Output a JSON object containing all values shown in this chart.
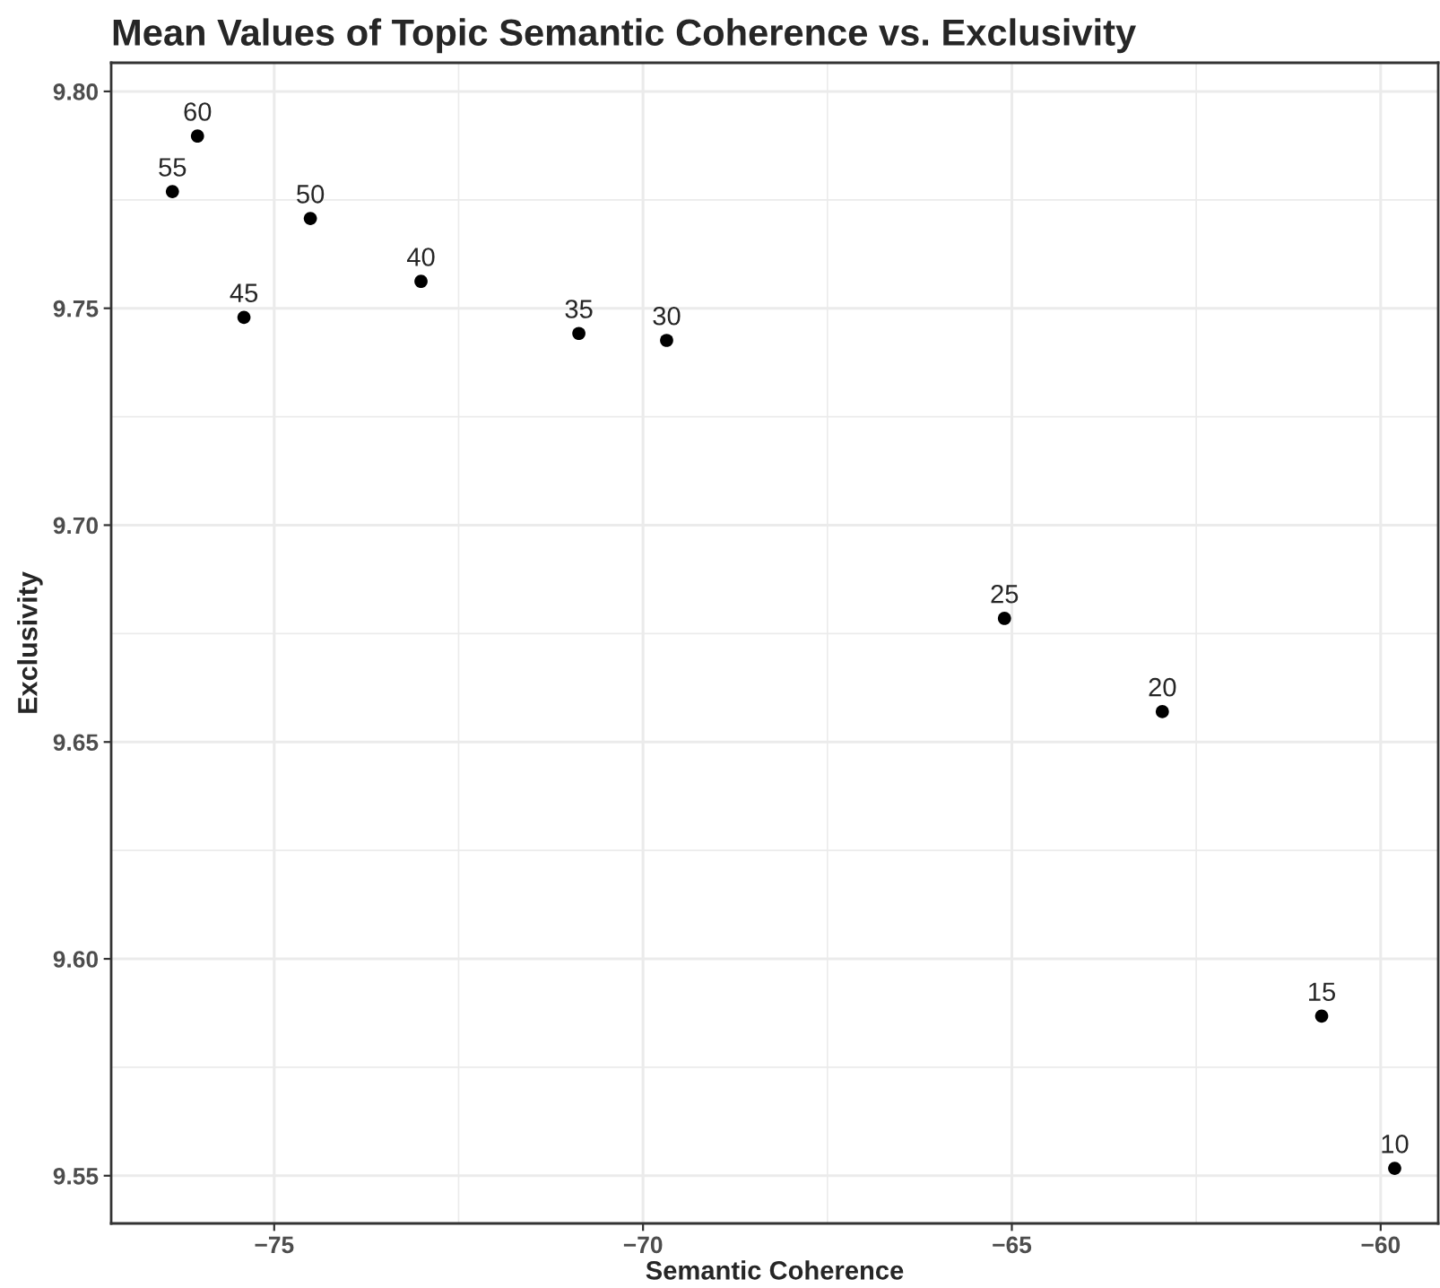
{
  "chart_data": {
    "type": "scatter",
    "title": "Mean Values of Topic Semantic Coherence vs. Exclusivity",
    "xlabel": "Semantic Coherence",
    "ylabel": "Exclusivity",
    "x": [
      -76.04,
      -76.38,
      -74.51,
      -73.01,
      -75.41,
      -70.87,
      -69.68,
      -65.1,
      -62.96,
      -60.8,
      -59.81
    ],
    "series": [
      {
        "color": "#000000",
        "values": [
          9.7897,
          9.7769,
          9.7707,
          9.7562,
          9.7479,
          9.7442,
          9.7426,
          9.6785,
          9.657,
          9.5868,
          9.5517
        ]
      }
    ],
    "annotations": [
      {
        "text": "60",
        "x": -76.04,
        "y": 9.7897
      },
      {
        "text": "55",
        "x": -76.38,
        "y": 9.7769
      },
      {
        "text": "50",
        "x": -74.51,
        "y": 9.7707
      },
      {
        "text": "40",
        "x": -73.01,
        "y": 9.7562
      },
      {
        "text": "45",
        "x": -75.41,
        "y": 9.7479
      },
      {
        "text": "35",
        "x": -70.87,
        "y": 9.7442
      },
      {
        "text": "30",
        "x": -69.68,
        "y": 9.7426
      },
      {
        "text": "25",
        "x": -65.1,
        "y": 9.6785
      },
      {
        "text": "20",
        "x": -62.96,
        "y": 9.657
      },
      {
        "text": "15",
        "x": -60.8,
        "y": 9.5868
      },
      {
        "text": "10",
        "x": -59.81,
        "y": 9.5517
      }
    ],
    "xlim": [
      -77.21,
      -59.22
    ],
    "ylim": [
      9.539,
      9.8066
    ],
    "xticks": [
      {
        "value": -75,
        "label": "−75"
      },
      {
        "value": -70,
        "label": "−70"
      },
      {
        "value": -65,
        "label": "−65"
      },
      {
        "value": -60,
        "label": "−60"
      }
    ],
    "yticks": [
      {
        "value": 9.55,
        "label": "9.55"
      },
      {
        "value": 9.6,
        "label": "9.60"
      },
      {
        "value": 9.65,
        "label": "9.65"
      },
      {
        "value": 9.7,
        "label": "9.70"
      },
      {
        "value": 9.75,
        "label": "9.75"
      },
      {
        "value": 9.8,
        "label": "9.80"
      }
    ],
    "grid": true,
    "marker": "circle"
  }
}
